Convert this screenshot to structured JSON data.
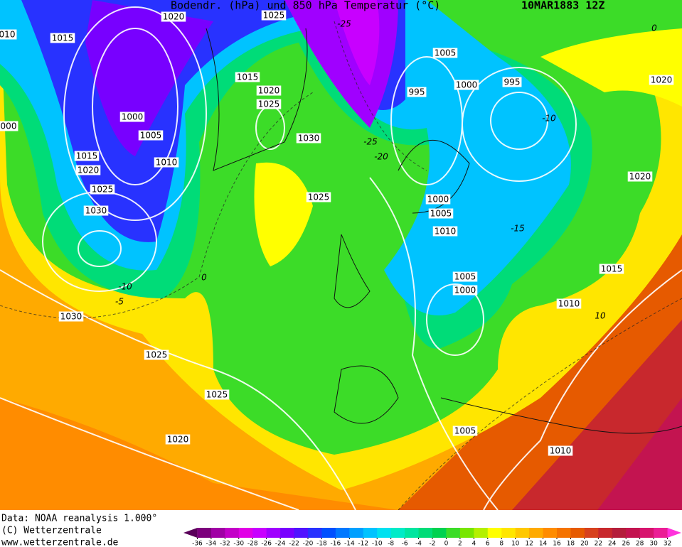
{
  "header": {
    "title": "Bodendr. (hPa) und 850 hPa Temperatur (°C)",
    "date": "10MAR1883 12Z"
  },
  "footer": {
    "lines": [
      "Data: NOAA reanalysis 1.000°",
      "(C) Wetterzentrale",
      "www.wetterzentrale.de"
    ]
  },
  "isobar_labels": [
    "1020",
    "1025",
    "1015",
    "010",
    "1005",
    "1015",
    "1020",
    "1000",
    "995",
    "1020",
    "1025",
    "1000",
    "000",
    "1005",
    "1030",
    "1015",
    "1010",
    "1020",
    "1025",
    "1030",
    "1020",
    "1025",
    "1000",
    "1005",
    "1010",
    "1015",
    "1005",
    "1000",
    "1010",
    "1030",
    "1025",
    "1025",
    "1005",
    "1020",
    "1010",
    "995"
  ],
  "temperature_labels": [
    "-25",
    "0",
    "-10",
    "-25",
    "-20",
    "-15",
    "-10",
    "-5",
    "0",
    "10"
  ],
  "color_scale": {
    "ticks": [
      -36,
      -34,
      -32,
      -30,
      -28,
      -26,
      -24,
      -22,
      -20,
      -18,
      -16,
      -14,
      -12,
      -10,
      -8,
      -6,
      -4,
      -2,
      0,
      2,
      4,
      6,
      8,
      10,
      12,
      14,
      16,
      18,
      20,
      22,
      24,
      26,
      28,
      30,
      32
    ],
    "colors": [
      "#5a005a",
      "#7d007d",
      "#a000a5",
      "#c300c8",
      "#e100e6",
      "#c800ff",
      "#a000ff",
      "#7800ff",
      "#5014ff",
      "#2832ff",
      "#0050ff",
      "#0078ff",
      "#00a0ff",
      "#00c3ff",
      "#00e1f0",
      "#00ebc8",
      "#00e6a0",
      "#00dc78",
      "#00d250",
      "#3cdc28",
      "#78e600",
      "#b4f000",
      "#ffff00",
      "#ffe600",
      "#ffc800",
      "#ffaa00",
      "#ff8c00",
      "#f57300",
      "#e65a00",
      "#d7411e",
      "#c8282d",
      "#b41e3c",
      "#c31450",
      "#d7146e",
      "#eb1e96",
      "#ff32dc"
    ]
  }
}
